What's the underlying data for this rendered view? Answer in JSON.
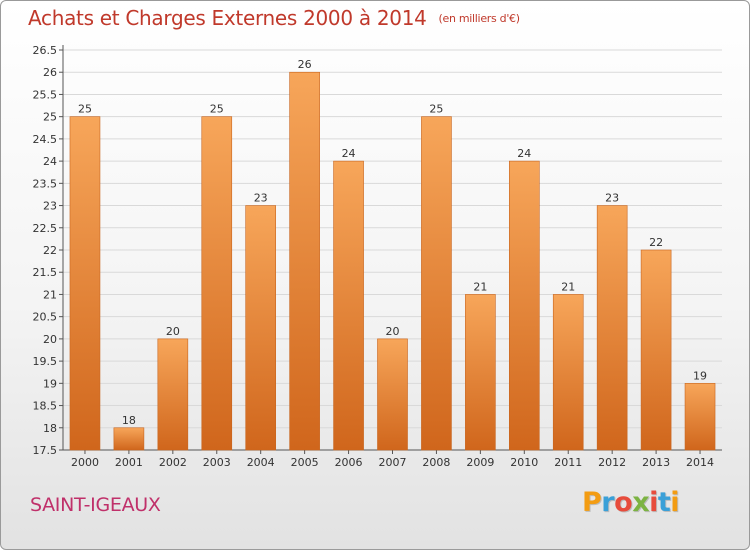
{
  "header": {
    "title": "Achats et Charges Externes 2000 à 2014",
    "unit": "(en milliers d'€)"
  },
  "commune_name": "SAINT-IGEAUX",
  "logo": {
    "text": "Proxiti",
    "letter_colors": [
      "#f39c12",
      "#3aa0d8",
      "#e74c3c",
      "#7cb342",
      "#e74c3c",
      "#3aa0d8",
      "#f39c12"
    ]
  },
  "colors": {
    "title": "#c0392b",
    "commune": "#c0306a",
    "bar_light": "#f7a65a",
    "bar_dark": "#d0661c",
    "grid": "#d9d9d9"
  },
  "chart_data": {
    "type": "bar",
    "categories": [
      "2000",
      "2001",
      "2002",
      "2003",
      "2004",
      "2005",
      "2006",
      "2007",
      "2008",
      "2009",
      "2010",
      "2011",
      "2012",
      "2013",
      "2014"
    ],
    "values": [
      25,
      18,
      20,
      25,
      23,
      26,
      24,
      20,
      25,
      21,
      24,
      21,
      23,
      22,
      19
    ],
    "labels": [
      "25",
      "18",
      "20",
      "25",
      "23",
      "26",
      "24",
      "20",
      "25",
      "21",
      "24",
      "21",
      "23",
      "22",
      "19"
    ],
    "ylim": [
      17.5,
      26.5
    ],
    "yticks": [
      "17.5",
      "18",
      "18.5",
      "19",
      "19.5",
      "20",
      "20.5",
      "21",
      "21.5",
      "22",
      "22.5",
      "23",
      "23.5",
      "24",
      "24.5",
      "25",
      "25.5",
      "26",
      "26.5"
    ],
    "grid": true,
    "legend": "none"
  }
}
